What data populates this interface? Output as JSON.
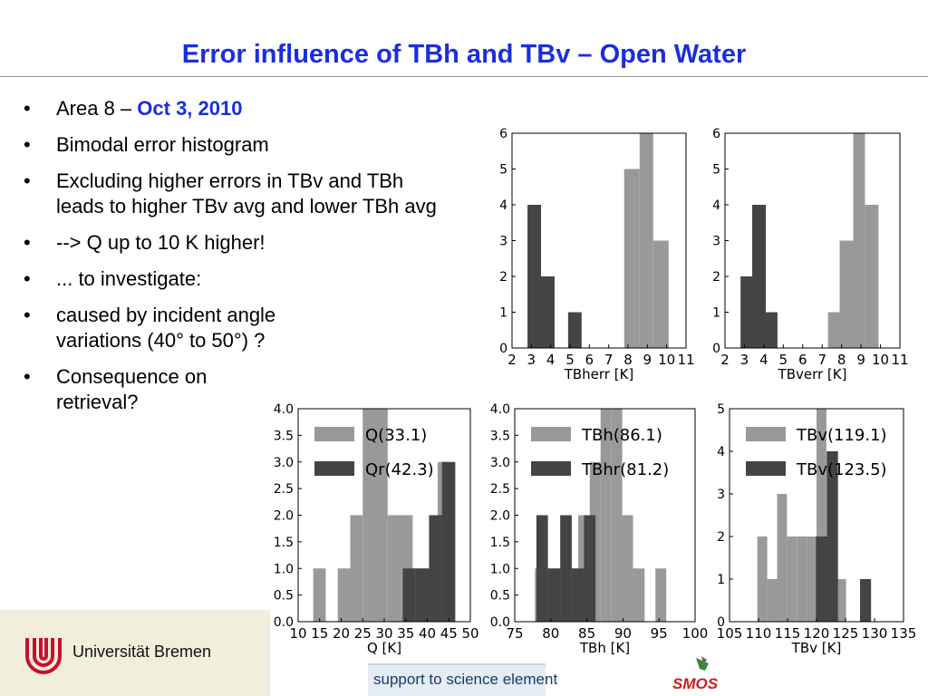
{
  "slide": {
    "title": "Error influence of TBh and TBv – Open Water",
    "bullets": [
      {
        "text": "Area 8 – ",
        "highlight": "Oct 3, 2010"
      },
      {
        "text": "Bimodal error histogram"
      },
      {
        "text": "Excluding higher errors in TBv and TBh leads to higher TBv avg and lower TBh avg"
      },
      {
        "text": "--> Q up to 10 K higher!"
      },
      {
        "text": "... to investigate:"
      },
      {
        "text": "caused by incident angle variations (40° to 50°) ?"
      },
      {
        "text": "Consequence on retrieval?"
      }
    ],
    "accent_color": "#1a2ee0"
  },
  "footer": {
    "university": "Universität Bremen",
    "sse_label": "support to science element",
    "smos_label": "SMOS",
    "band_color": "#f1eedc"
  },
  "chart_data": [
    {
      "type": "bar",
      "subtype": "histogram",
      "xlabel": "TBherr [K]",
      "xlim": [
        2,
        11
      ],
      "ylim": [
        0,
        6
      ],
      "xticks": [
        2,
        3,
        4,
        5,
        6,
        7,
        8,
        9,
        10,
        11
      ],
      "yticks": [
        0,
        1,
        2,
        3,
        4,
        5,
        6
      ],
      "grid": false,
      "series": [
        {
          "color": "#999999",
          "bins": [
            [
              7.8,
              8.6,
              5
            ],
            [
              8.6,
              9.3,
              6
            ],
            [
              9.3,
              10.1,
              3
            ]
          ]
        },
        {
          "color": "#444444",
          "bins": [
            [
              2.8,
              3.5,
              4
            ],
            [
              3.5,
              4.2,
              2
            ],
            [
              4.9,
              5.6,
              1
            ]
          ]
        }
      ]
    },
    {
      "type": "bar",
      "subtype": "histogram",
      "xlabel": "TBverr [K]",
      "xlim": [
        2,
        11
      ],
      "ylim": [
        0,
        6
      ],
      "xticks": [
        2,
        3,
        4,
        5,
        6,
        7,
        8,
        9,
        10,
        11
      ],
      "yticks": [
        0,
        1,
        2,
        3,
        4,
        5,
        6
      ],
      "grid": false,
      "series": [
        {
          "color": "#999999",
          "bins": [
            [
              7.3,
              7.9,
              1
            ],
            [
              7.9,
              8.6,
              3
            ],
            [
              8.6,
              9.2,
              6
            ],
            [
              9.2,
              9.9,
              4
            ]
          ]
        },
        {
          "color": "#444444",
          "bins": [
            [
              2.8,
              3.4,
              2
            ],
            [
              3.4,
              4.1,
              4
            ],
            [
              4.1,
              4.7,
              1
            ]
          ]
        }
      ]
    },
    {
      "type": "bar",
      "subtype": "histogram",
      "xlabel": "Q [K]",
      "xlim": [
        10,
        50
      ],
      "ylim": [
        0,
        4
      ],
      "xticks": [
        10,
        15,
        20,
        25,
        30,
        35,
        40,
        45,
        50
      ],
      "yticks": [
        "0.0",
        "0.5",
        "1.0",
        "1.5",
        "2.0",
        "2.5",
        "3.0",
        "3.5",
        "4.0"
      ],
      "legend": [
        "Q(33.1)",
        "Qr(42.3)"
      ],
      "legend_position": "top-left",
      "grid": false,
      "series": [
        {
          "name": "Q(33.1)",
          "color": "#999999",
          "bins": [
            [
              13.5,
              16.4,
              1
            ],
            [
              19.2,
              22.1,
              1
            ],
            [
              22.1,
              25.0,
              2
            ],
            [
              25.0,
              27.9,
              4
            ],
            [
              27.9,
              30.8,
              4
            ],
            [
              30.8,
              33.7,
              2
            ],
            [
              33.7,
              36.6,
              2
            ],
            [
              36.6,
              39.5,
              1
            ],
            [
              39.5,
              42.4,
              1
            ],
            [
              42.4,
              45.3,
              3
            ]
          ]
        },
        {
          "name": "Qr(42.3)",
          "color": "#444444",
          "bins": [
            [
              34.3,
              37.3,
              1
            ],
            [
              37.3,
              40.4,
              1
            ],
            [
              40.4,
              43.4,
              2
            ],
            [
              43.4,
              46.5,
              3
            ]
          ]
        }
      ]
    },
    {
      "type": "bar",
      "subtype": "histogram",
      "xlabel": "TBh [K]",
      "xlim": [
        75,
        100
      ],
      "ylim": [
        0,
        4
      ],
      "xticks": [
        75,
        80,
        85,
        90,
        95,
        100
      ],
      "yticks": [
        "0.0",
        "0.5",
        "1.0",
        "1.5",
        "2.0",
        "2.5",
        "3.0",
        "3.5",
        "4.0"
      ],
      "legend": [
        "TBh(86.1)",
        "TBhr(81.2)"
      ],
      "legend_position": "top-left",
      "grid": false,
      "series": [
        {
          "name": "TBh(86.1)",
          "color": "#999999",
          "bins": [
            [
              77.8,
              79.3,
              1
            ],
            [
              79.3,
              80.8,
              1
            ],
            [
              80.8,
              82.3,
              1
            ],
            [
              82.3,
              83.8,
              1
            ],
            [
              83.8,
              85.4,
              2
            ],
            [
              85.4,
              86.9,
              3
            ],
            [
              86.9,
              88.4,
              4
            ],
            [
              88.4,
              89.9,
              4
            ],
            [
              89.9,
              91.4,
              2
            ],
            [
              91.4,
              93.0,
              1
            ],
            [
              94.5,
              96.0,
              1
            ]
          ]
        },
        {
          "name": "TBhr(81.2)",
          "color": "#444444",
          "bins": [
            [
              78.0,
              79.6,
              2
            ],
            [
              79.6,
              81.3,
              1
            ],
            [
              81.3,
              82.9,
              2
            ],
            [
              82.9,
              84.6,
              1
            ],
            [
              84.6,
              86.2,
              2
            ]
          ]
        }
      ]
    },
    {
      "type": "bar",
      "subtype": "histogram",
      "xlabel": "TBv [K]",
      "xlim": [
        105,
        135
      ],
      "ylim": [
        0,
        5
      ],
      "xticks": [
        105,
        110,
        115,
        120,
        125,
        130,
        135
      ],
      "yticks": [
        0,
        1,
        2,
        3,
        4,
        5
      ],
      "legend": [
        "TBv(119.1)",
        "TBv(123.5)"
      ],
      "legend_position": "top-left",
      "grid": false,
      "series": [
        {
          "name": "TBv(119.1)",
          "color": "#999999",
          "bins": [
            [
              109.8,
              111.5,
              2
            ],
            [
              111.5,
              113.2,
              1
            ],
            [
              113.2,
              114.9,
              3
            ],
            [
              114.9,
              116.6,
              2
            ],
            [
              116.6,
              118.3,
              2
            ],
            [
              118.3,
              120.0,
              2
            ],
            [
              120.0,
              121.7,
              5
            ],
            [
              121.7,
              123.4,
              4
            ],
            [
              123.4,
              125.1,
              1
            ]
          ]
        },
        {
          "name": "TBv(123.5)",
          "color": "#444444",
          "bins": [
            [
              119.9,
              121.8,
              2
            ],
            [
              121.8,
              123.7,
              4
            ],
            [
              127.5,
              129.4,
              1
            ]
          ]
        }
      ]
    }
  ]
}
